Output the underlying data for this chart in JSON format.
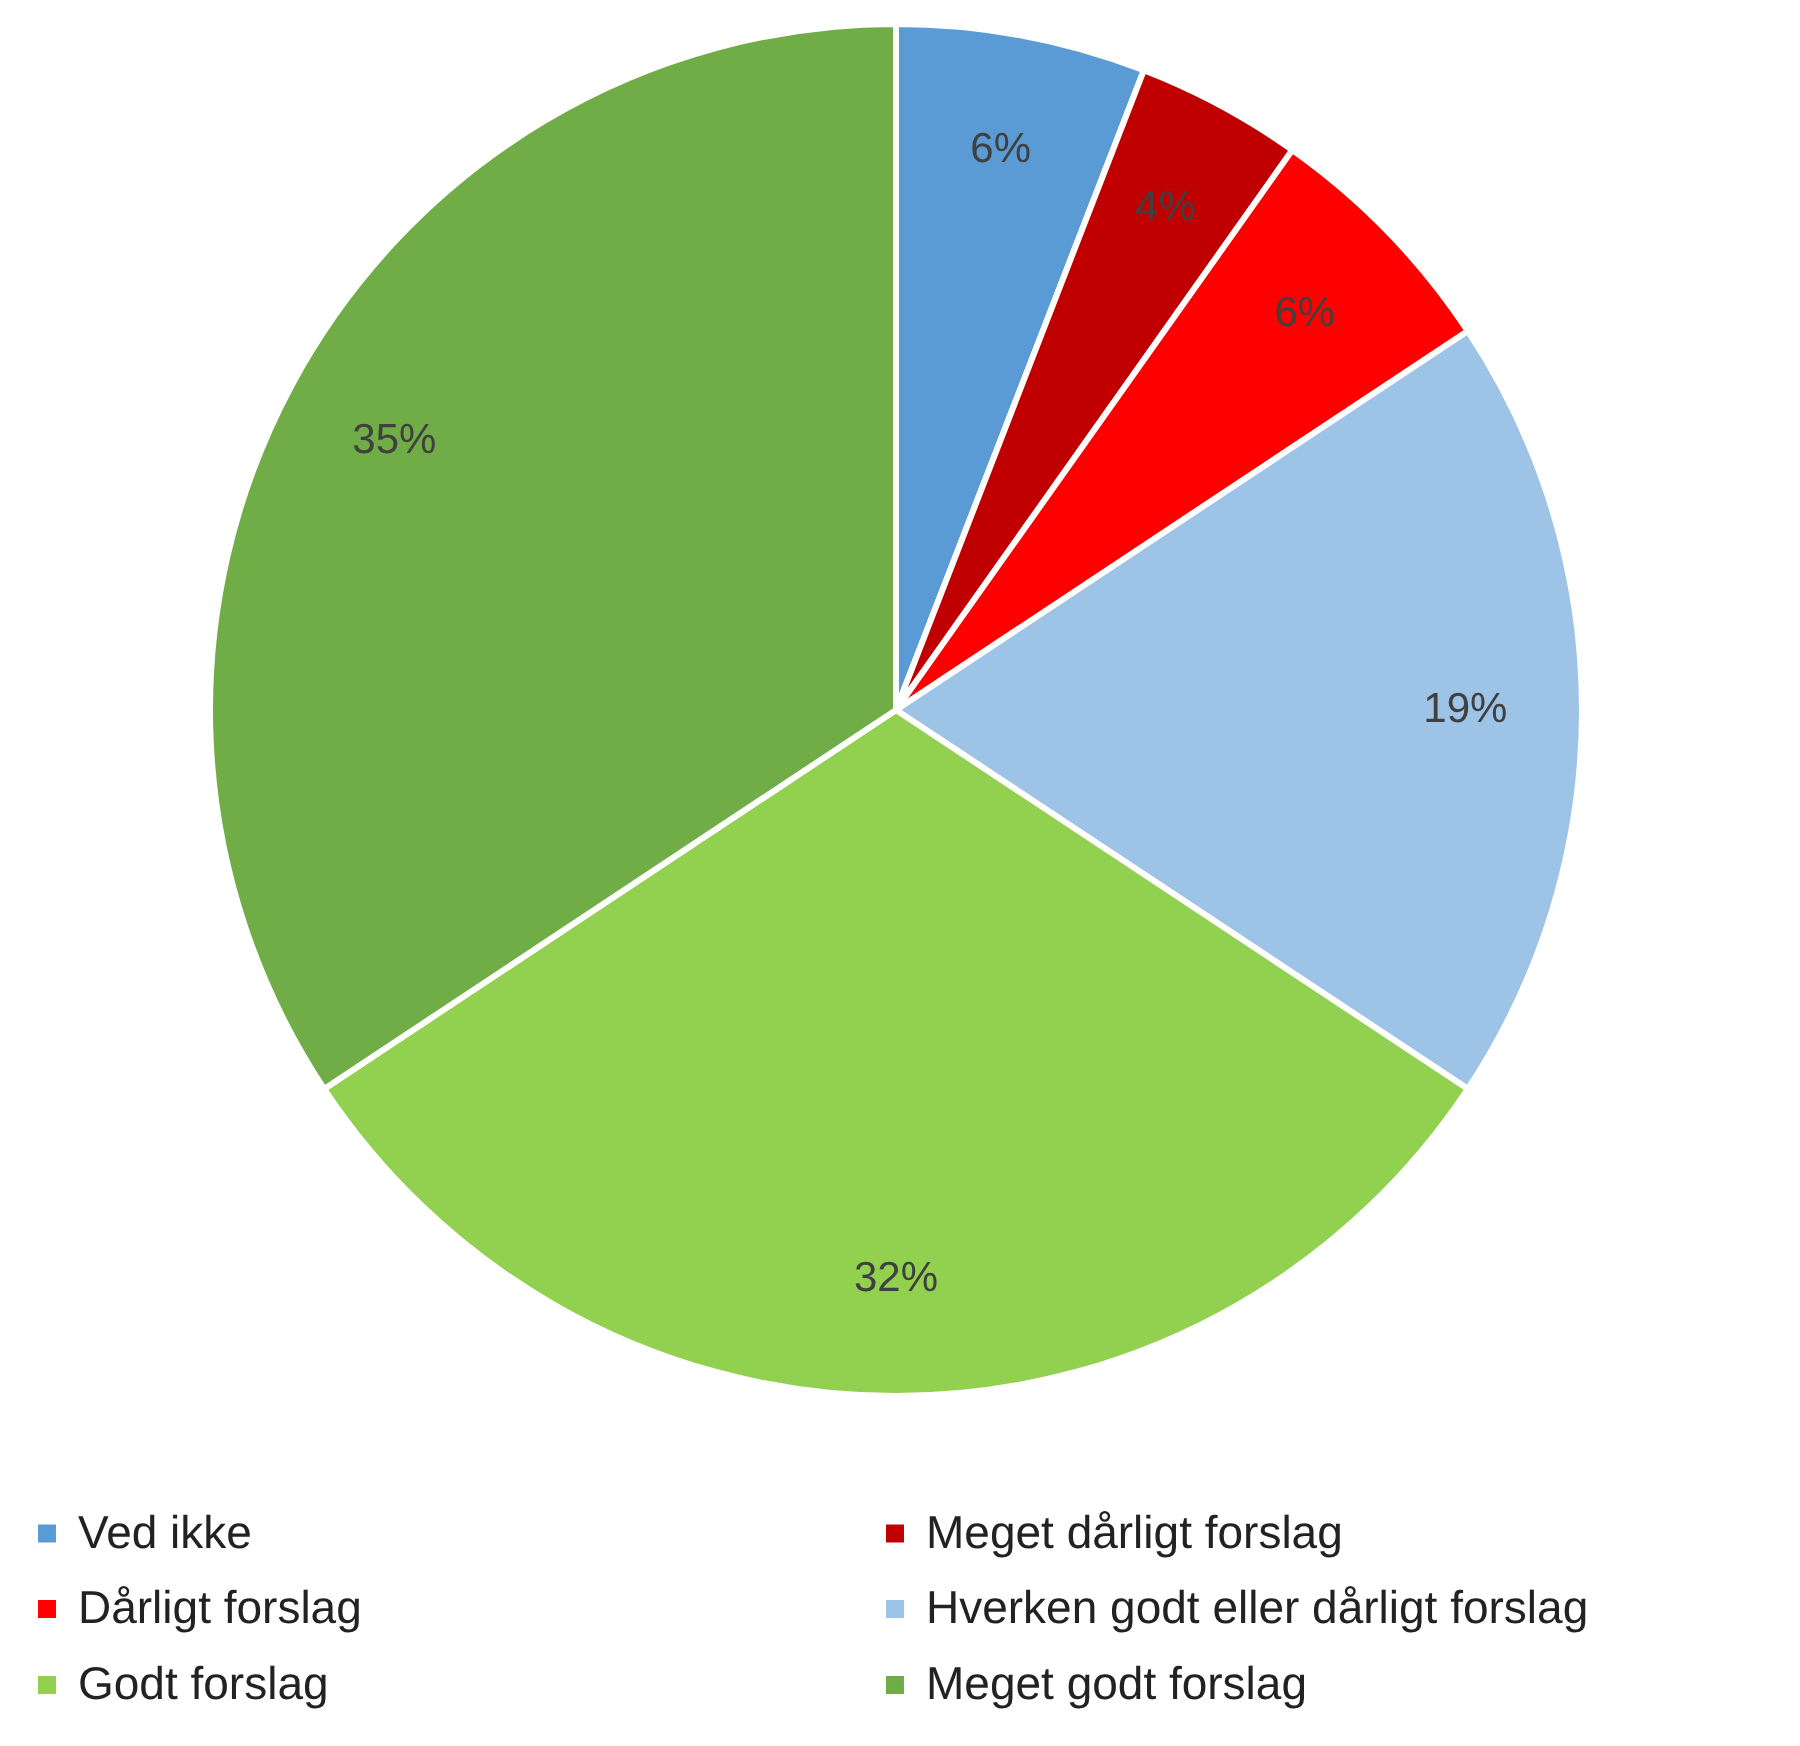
{
  "chart_data": {
    "type": "pie",
    "categories": [
      "Ved ikke",
      "Meget dårligt forslag",
      "Dårligt forslag",
      "Hverken godt eller dårligt forslag",
      "Godt forslag",
      "Meget godt forslag"
    ],
    "values": [
      6,
      4,
      6,
      19,
      32,
      35
    ],
    "value_labels": [
      "6%",
      "4%",
      "6%",
      "19%",
      "32%",
      "35%"
    ],
    "colors": [
      "#5b9bd5",
      "#c00000",
      "#ff0000",
      "#9dc3e6",
      "#92d050",
      "#70ad47"
    ],
    "legend": "bottom"
  }
}
